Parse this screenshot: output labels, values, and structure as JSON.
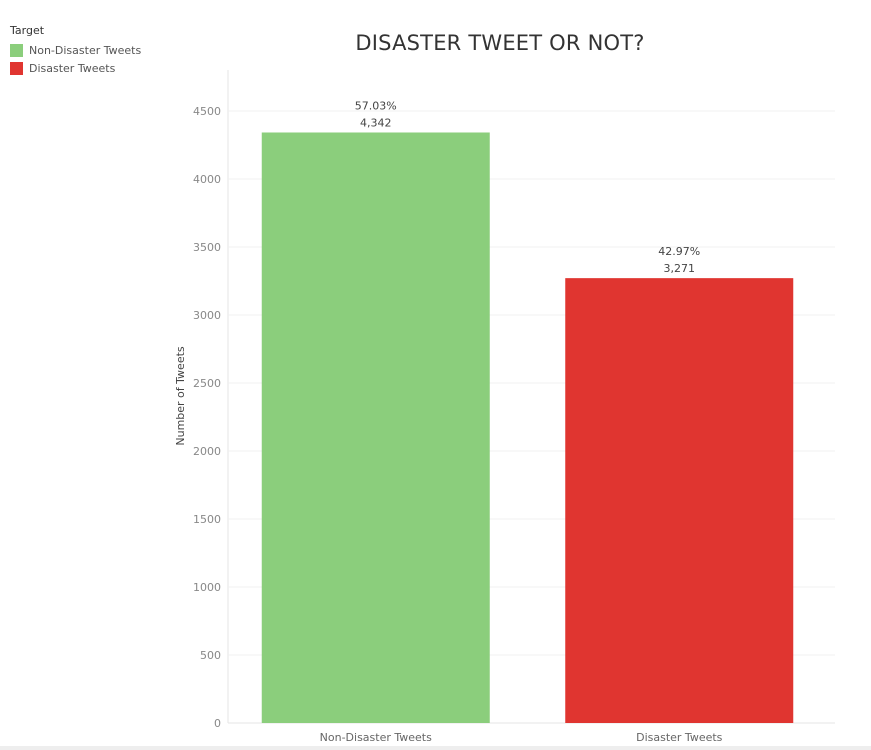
{
  "legend": {
    "title": "Target",
    "items": [
      {
        "label": "Non-Disaster Tweets",
        "color": "#8bce7c"
      },
      {
        "label": "Disaster Tweets",
        "color": "#e03530"
      }
    ]
  },
  "chart_data": {
    "type": "bar",
    "title": "DISASTER TWEET OR NOT?",
    "xlabel": "",
    "ylabel": "Number of Tweets",
    "categories": [
      "Non-Disaster Tweets",
      "Disaster Tweets"
    ],
    "values": [
      4342,
      3271
    ],
    "value_labels": [
      "4,342",
      "3,271"
    ],
    "percent_labels": [
      "57.03%",
      "42.97%"
    ],
    "colors": [
      "#8bce7c",
      "#e03530"
    ],
    "yticks": [
      0,
      500,
      1000,
      1500,
      2000,
      2500,
      3000,
      3500,
      4000,
      4500
    ],
    "ylim": [
      0,
      4800
    ],
    "grid": true,
    "legend_position": "top-left"
  }
}
